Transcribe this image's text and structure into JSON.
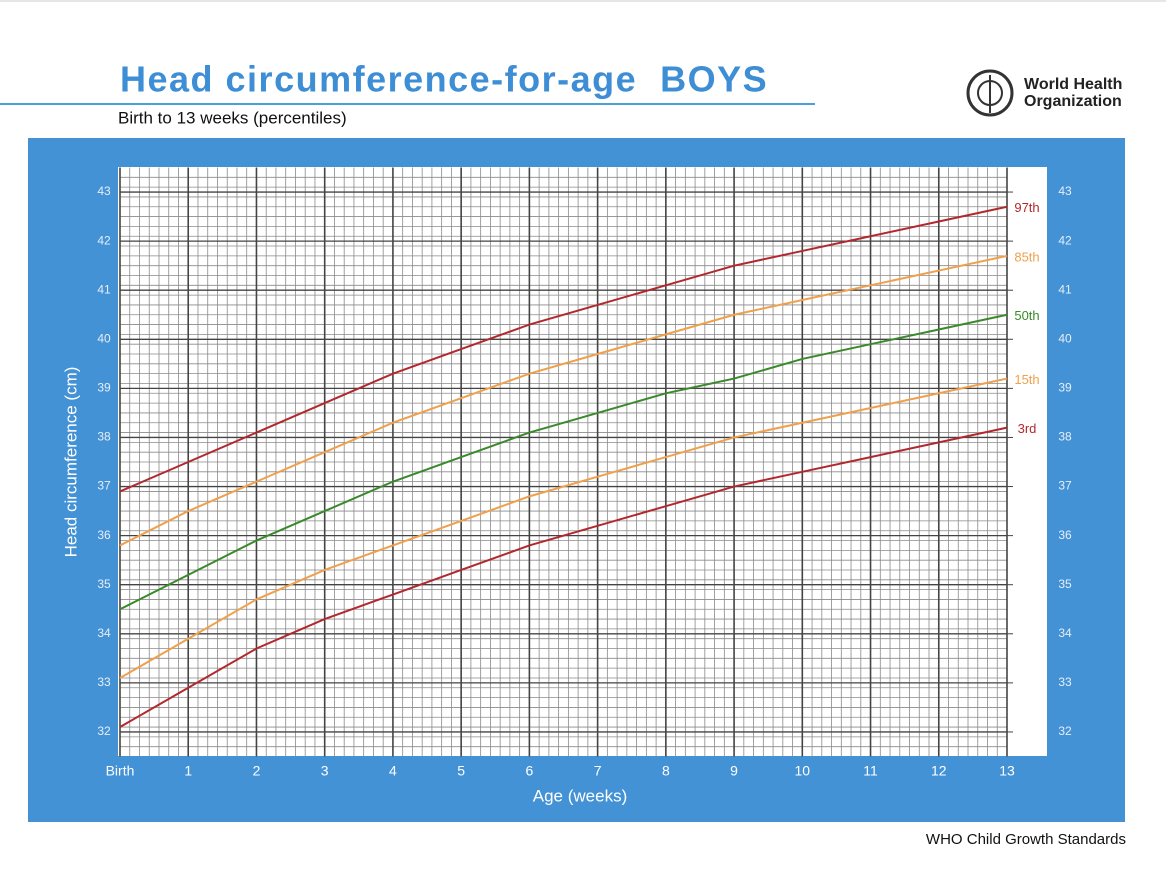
{
  "header": {
    "title": "Head circumference-for-age  BOYS",
    "subtitle": "Birth to 13 weeks (percentiles)",
    "logo_text": [
      "World Health",
      "Organization"
    ]
  },
  "chart_data": {
    "type": "line",
    "x_label": "Age (weeks)",
    "y_label": "Head circumference (cm)",
    "x": [
      0,
      1,
      2,
      3,
      4,
      5,
      6,
      7,
      8,
      9,
      10,
      11,
      12,
      13
    ],
    "xlim": [
      0,
      13
    ],
    "xticks": [
      {
        "value": 0,
        "label": "Birth"
      },
      1,
      2,
      3,
      4,
      5,
      6,
      7,
      8,
      9,
      10,
      11,
      12,
      13
    ],
    "ylim": [
      31.5,
      43.5
    ],
    "yticks": [
      32,
      33,
      34,
      35,
      36,
      37,
      38,
      39,
      40,
      41,
      42,
      43
    ],
    "grid": true,
    "series": [
      {
        "name": "97th",
        "color": "#b3282d",
        "values": [
          36.9,
          37.5,
          38.1,
          38.7,
          39.3,
          39.8,
          40.3,
          40.7,
          41.1,
          41.5,
          41.8,
          42.1,
          42.4,
          42.7
        ]
      },
      {
        "name": "85th",
        "color": "#f0a04b",
        "values": [
          35.8,
          36.5,
          37.1,
          37.7,
          38.3,
          38.8,
          39.3,
          39.7,
          40.1,
          40.5,
          40.8,
          41.1,
          41.4,
          41.7
        ]
      },
      {
        "name": "50th",
        "color": "#3a8a2c",
        "values": [
          34.5,
          35.2,
          35.9,
          36.5,
          37.1,
          37.6,
          38.1,
          38.5,
          38.9,
          39.2,
          39.6,
          39.9,
          40.2,
          40.5
        ]
      },
      {
        "name": "15th",
        "color": "#f0a04b",
        "values": [
          33.1,
          33.9,
          34.7,
          35.3,
          35.8,
          36.3,
          36.8,
          37.2,
          37.6,
          38.0,
          38.3,
          38.6,
          38.9,
          39.2
        ]
      },
      {
        "name": "3rd",
        "color": "#b3282d",
        "values": [
          32.1,
          32.9,
          33.7,
          34.3,
          34.8,
          35.3,
          35.8,
          36.2,
          36.6,
          37.0,
          37.3,
          37.6,
          37.9,
          38.2
        ]
      }
    ]
  },
  "footer": "WHO Child Growth Standards"
}
